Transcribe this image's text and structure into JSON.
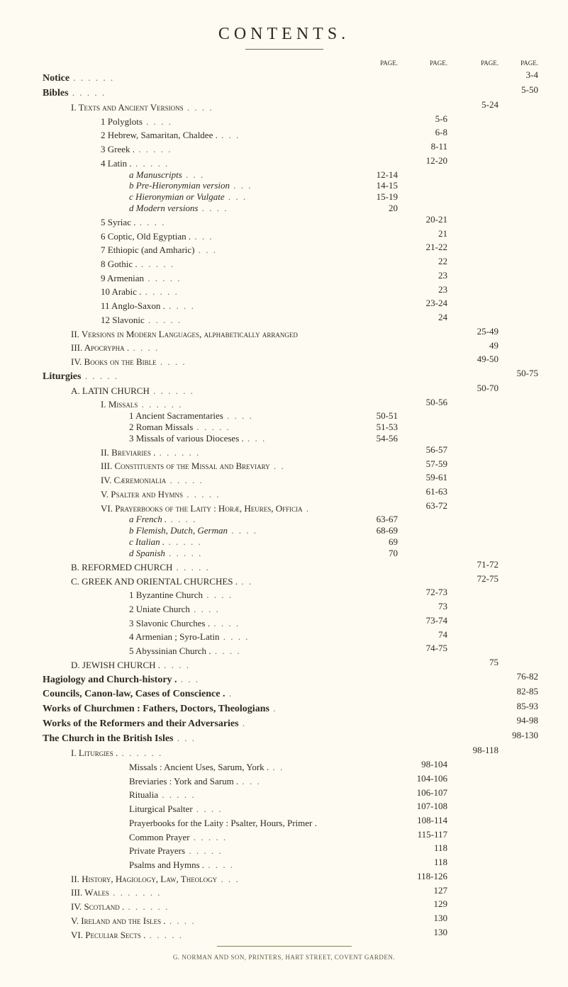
{
  "title": "CONTENTS.",
  "pageLabel": "PAGE.",
  "columns": {
    "cw1": 70,
    "cw2": 70,
    "cw3": 72,
    "cw4": 56
  },
  "rows": [
    {
      "indent": 0,
      "text": "Notice",
      "bold": true,
      "dots": "    .  .    .      .   .      .",
      "c4": "3-4",
      "colhead": true
    },
    {
      "indent": 0,
      "text": "Bibles",
      "bold": true,
      "dots": "                 .                  .                   .               .               .",
      "c4": "5-50"
    },
    {
      "indent": 1,
      "text": "I. Texts and Ancient Versions",
      "sc": true,
      "dots": "          .     .     .     .",
      "c3": "5-24"
    },
    {
      "indent": 2,
      "text": "1 Polyglots",
      "dots": "           .            .          .          .",
      "c2": "5-6"
    },
    {
      "indent": 2,
      "text": "2 Hebrew, Samaritan, Chaldee .",
      "dots": "        .        .      .",
      "c2": "6-8"
    },
    {
      "indent": 2,
      "text": "3 Greek  .",
      "dots": "            .         .         .          .         .",
      "c2": "8-11"
    },
    {
      "indent": 2,
      "text": "4 Latin  .",
      "dots": "            .         .         .          .         .",
      "c2": "12-20"
    },
    {
      "indent": 3,
      "text": "a Manuscripts",
      "ital": true,
      "dots": "         .     .       .",
      "c1": "12-14"
    },
    {
      "indent": 3,
      "text": "b Pre-Hieronymian version",
      "ital": true,
      "dots": "  .     .     .",
      "c1": "14-15"
    },
    {
      "indent": 3,
      "text": "c Hieronymian or Vulgate",
      "ital": true,
      "dots": "  .     .     .",
      "c1": "15-19"
    },
    {
      "indent": 3,
      "text": "d Modern versions",
      "ital": true,
      "dots": "       .       .        .     .",
      "c1": "20"
    },
    {
      "indent": 2,
      "text": "5 Syriac .",
      "dots": "           .           .           .           .",
      "c2": "20-21"
    },
    {
      "indent": 2,
      "text": "6 Coptic, Old Egyptian .",
      "dots": "     .      .       .",
      "c2": "21"
    },
    {
      "indent": 2,
      "text": "7 Ethiopic (and Amharic)",
      "dots": "    .      .       .",
      "c2": "21-22"
    },
    {
      "indent": 2,
      "text": "8 Gothic .",
      "dots": "      .       .        .        .       .",
      "c2": "22"
    },
    {
      "indent": 2,
      "text": "9 Armenian",
      "dots": "         .        .       .      .      .",
      "c2": "23"
    },
    {
      "indent": 2,
      "text": "10 Arabic .",
      "dots": "       .        .       .       .       .",
      "c2": "23"
    },
    {
      "indent": 2,
      "text": "11 Anglo-Saxon  .",
      "dots": "  .     .     .      .",
      "c2": "23-24"
    },
    {
      "indent": 2,
      "text": "12 Slavonic",
      "dots": "       .        .       .       .       .",
      "c2": "24"
    },
    {
      "indent": 1,
      "text": "II. Versions in Modern Languages, alphabetically arranged",
      "sc": true,
      "dots": "",
      "c3": "25-49"
    },
    {
      "indent": 1,
      "text": "III. Apocrypha .",
      "sc": true,
      "dots": "            .               .              .             .",
      "c3": "49"
    },
    {
      "indent": 1,
      "text": "IV. Books on the Bible",
      "sc": true,
      "dots": "           .           .           .           .",
      "c3": "49-50"
    },
    {
      "indent": 0,
      "text": "Liturgies",
      "bold": true,
      "dots": "              .                   .                   .                  .               .",
      "c4": "50-75"
    },
    {
      "indent": 1,
      "text": "A. LATIN CHURCH",
      "dots": "       .        .        .        .        .       .",
      "c3": "50-70"
    },
    {
      "indent": 2,
      "text": "I. Missals",
      "sc": true,
      "dots": "       .       .       .       .       .       .",
      "c2": "50-56"
    },
    {
      "indent": 3,
      "text": "1 Ancient Sacramentaries",
      "dots": "      .        .      .     .",
      "c1": "50-51"
    },
    {
      "indent": 3,
      "text": "2 Roman Missals",
      "dots": "       .       .       .       .      .",
      "c1": "51-53"
    },
    {
      "indent": 3,
      "text": "3 Missals of various Dioceses  .",
      "dots": "  .   .    .",
      "c1": "54-56"
    },
    {
      "indent": 2,
      "text": "II. Breviaries  .",
      "sc": true,
      "dots": "      .      .      .      .      .      .",
      "c2": "56-57"
    },
    {
      "indent": 2,
      "text": "III. Constituents of the Missal and Breviary",
      "sc": true,
      "dots": "  .   .",
      "c2": "57-59"
    },
    {
      "indent": 2,
      "text": "IV. Cæremonialia",
      "sc": true,
      "dots": "           .        .       .       .       .",
      "c2": "59-61"
    },
    {
      "indent": 2,
      "text": "V. Psalter and Hymns",
      "sc": true,
      "dots": "        .       .       .       .       .",
      "c2": "61-63"
    },
    {
      "indent": 2,
      "text": "VI. Prayerbooks of the Laity : Horæ, Heures, Officia",
      "sc": true,
      "dots": "    .",
      "c2": "63-72"
    },
    {
      "indent": 3,
      "text": "a French .",
      "ital": true,
      "dots": "     .      .       .       .",
      "c1": "63-67"
    },
    {
      "indent": 3,
      "text": "b Flemish, Dutch, German",
      "ital": true,
      "dots": "   .   .    .     .",
      "c1": "68-69"
    },
    {
      "indent": 3,
      "text": "c Italian .",
      "ital": true,
      "dots": "    .    .      .      .     .",
      "c1": "69"
    },
    {
      "indent": 3,
      "text": "d Spanish",
      "ital": true,
      "dots": "       .      .      .      .     .",
      "c1": "70"
    },
    {
      "indent": 1,
      "text": "B. REFORMED CHURCH",
      "dots": "       .       .      .      .       .",
      "c3": "71-72"
    },
    {
      "indent": 1,
      "text": "C. GREEK AND ORIENTAL CHURCHES .",
      "dots": "     .      .",
      "c3": "72-75"
    },
    {
      "indent": 3,
      "text": "1 Byzantine Church",
      "dots": "        .      .       .      .",
      "c2": "72-73"
    },
    {
      "indent": 3,
      "text": "2 Uniate Church",
      "dots": "       .       .       .        .",
      "c2": "73"
    },
    {
      "indent": 3,
      "text": "3 Slavonic Churches   .",
      "dots": "    .     .      .     .",
      "c2": "73-74"
    },
    {
      "indent": 3,
      "text": "4 Armenian ; Syro-Latin",
      "dots": "  .     .      .     .",
      "c2": "74"
    },
    {
      "indent": 3,
      "text": "5 Abyssinian Church   .",
      "dots": "    .     .     .     .",
      "c2": "74-75"
    },
    {
      "indent": 1,
      "text": "D. JEWISH CHURCH .",
      "dots": "               .        .        .        .",
      "c3": "75"
    },
    {
      "indent": 0,
      "text": "Hagiology and Church-history .",
      "bold": true,
      "dots": "    .     .      .",
      "c4": "76-82"
    },
    {
      "indent": 0,
      "text": "Councils, Canon-law, Cases of Conscience .",
      "bold": true,
      "dots": "    .",
      "c4": "82-85"
    },
    {
      "indent": 0,
      "text": "Works of Churchmen : Fathers, Doctors, Theologians",
      "bold": true,
      "dots": "  .",
      "c4": "85-93"
    },
    {
      "indent": 0,
      "text": "Works of the Reformers and their Adversaries",
      "bold": true,
      "dots": " .",
      "c4": "94-98"
    },
    {
      "indent": 0,
      "text": "The Church in the British Isles",
      "bold": true,
      "dots": "       .       .       .",
      "c4": "98-130"
    },
    {
      "indent": 1,
      "text": "I. Liturgies  .",
      "sc": true,
      "dots": "     .      .      .      .      .       .",
      "c3": "98-118"
    },
    {
      "indent": 3,
      "text": "Missals : Ancient Uses, Sarum, York .",
      "dots": "  .   .",
      "c2": "98-104"
    },
    {
      "indent": 3,
      "text": "Breviaries : York and Sarum .",
      "dots": "  .     .     .",
      "c2": "104-106"
    },
    {
      "indent": 3,
      "text": "Ritualia",
      "dots": "            .       .       .       .       .",
      "c2": "106-107"
    },
    {
      "indent": 3,
      "text": "Liturgical Psalter",
      "dots": "       .      .       .       .",
      "c2": "107-108"
    },
    {
      "indent": 3,
      "text": "Prayerbooks for the Laity : Psalter, Hours, Primer .",
      "dots": "",
      "c2": "108-114"
    },
    {
      "indent": 3,
      "text": "Common Prayer",
      "dots": "       .      .       .       .      .",
      "c2": "115-117"
    },
    {
      "indent": 3,
      "text": "Private Prayers",
      "dots": "        .       .       .       .     .",
      "c2": "118"
    },
    {
      "indent": 3,
      "text": "Psalms and Hymns   .",
      "dots": "    .       .       .      .",
      "c2": "118"
    },
    {
      "indent": 1,
      "text": "II. History, Hagiology, Law, Theology",
      "sc": true,
      "dots": "   .    .    .",
      "c2": "118-126"
    },
    {
      "indent": 1,
      "text": "III. Wales",
      "sc": true,
      "dots": "       .       .        .       .       .       .      .",
      "c2": "127"
    },
    {
      "indent": 1,
      "text": "IV. Scotland  .",
      "sc": true,
      "dots": "    .       .        .       .       .       .",
      "c2": "129"
    },
    {
      "indent": 1,
      "text": "V. Ireland and the Isles  .",
      "sc": true,
      "dots": "      .       .       .       .",
      "c2": "130"
    },
    {
      "indent": 1,
      "text": "VI. Peculiar Sects   .",
      "sc": true,
      "dots": "  .      .       .      .       .",
      "c2": "130"
    }
  ],
  "footer": "G. NORMAN AND SON, PRINTERS, HART STREET, COVENT GARDEN."
}
